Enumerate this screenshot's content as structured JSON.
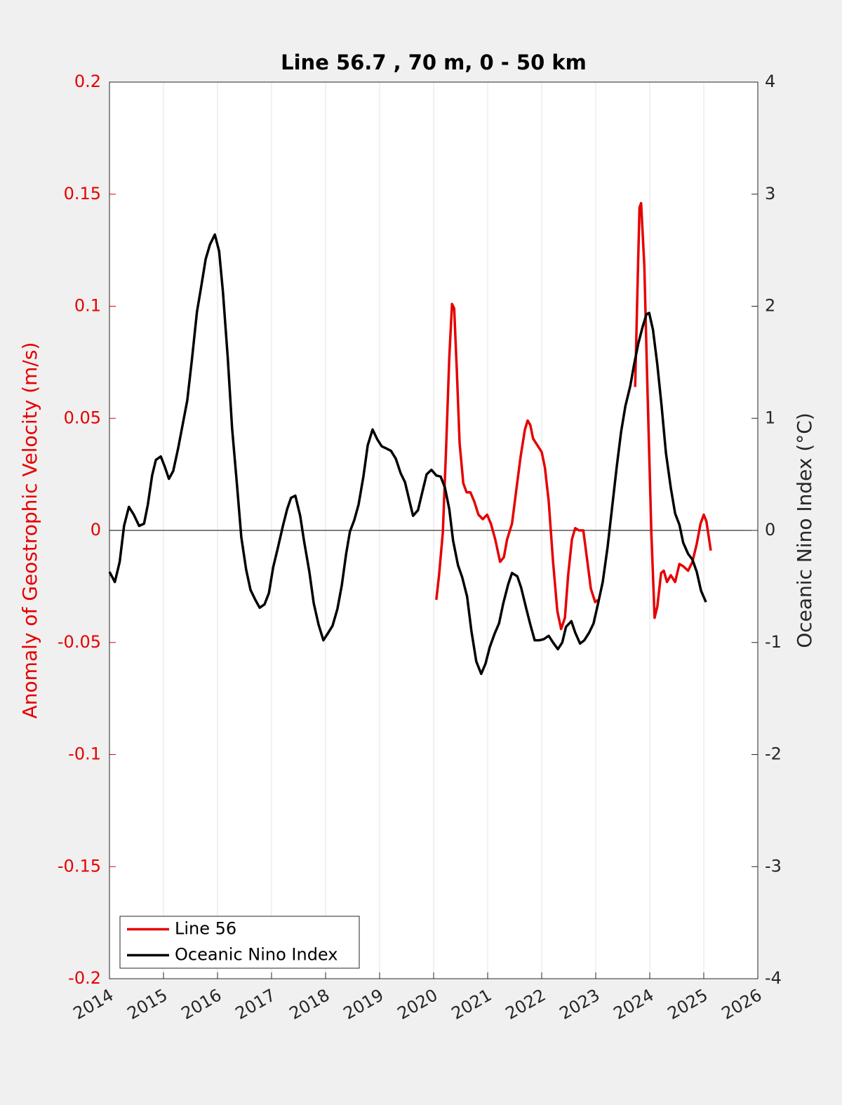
{
  "chart_data": {
    "type": "line",
    "title": "Line 56.7 , 70 m, 0 - 50 km",
    "ylabel": "Anomaly of Geostrophic Velocity (m/s)",
    "y2label": "Oceanic Nino Index (°C)",
    "xlim": [
      2014,
      2026
    ],
    "xticks": [
      2014,
      2015,
      2016,
      2017,
      2018,
      2019,
      2020,
      2021,
      2022,
      2023,
      2024,
      2025,
      2026
    ],
    "ylim": [
      -0.2,
      0.2
    ],
    "yticks": [
      0.2,
      0.15,
      0.1,
      0.05,
      0,
      -0.05,
      -0.1,
      -0.15,
      -0.2
    ],
    "y2lim": [
      -4,
      4
    ],
    "y2ticks": [
      4,
      3,
      2,
      1,
      0,
      -1,
      -2,
      -3,
      -4
    ],
    "xgrid": true,
    "legend": "lower left",
    "series": [
      {
        "name": "Line 56",
        "color": "#e60000",
        "x": [
          2020.05,
          2020.1,
          2020.17,
          2020.23,
          2020.29,
          2020.34,
          2020.38,
          2020.43,
          2020.48,
          2020.55,
          2020.61,
          2020.68,
          2020.75,
          2020.83,
          2020.91,
          2020.99,
          2021.06,
          2021.14,
          2021.23,
          2021.3,
          2021.36,
          2021.45,
          2021.53,
          2021.61,
          2021.69,
          2021.74,
          2021.79,
          2021.84,
          2021.92,
          2022.0,
          2022.06,
          2022.13,
          2022.21,
          2022.29,
          2022.36,
          2022.43,
          2022.49,
          2022.56,
          2022.62,
          2022.69,
          2022.77,
          2022.83,
          2022.91,
          2022.99,
          2023.04,
          2023.5,
          2023.73,
          2023.77,
          2023.81,
          2023.84,
          2023.9,
          2023.96,
          2024.03,
          2024.09,
          2024.14,
          2024.21,
          2024.26,
          2024.32,
          2024.39,
          2024.47,
          2024.55,
          2024.62,
          2024.71,
          2024.79,
          2024.87,
          2024.94,
          2025.0,
          2025.05,
          2025.13
        ],
        "values": [
          -0.031,
          -0.02,
          -0.001,
          0.036,
          0.077,
          0.101,
          0.099,
          0.071,
          0.039,
          0.021,
          0.017,
          0.017,
          0.013,
          0.007,
          0.005,
          0.007,
          0.003,
          -0.004,
          -0.014,
          -0.012,
          -0.004,
          0.003,
          0.018,
          0.033,
          0.045,
          0.049,
          0.047,
          0.041,
          0.038,
          0.035,
          0.028,
          0.013,
          -0.014,
          -0.036,
          -0.044,
          -0.039,
          -0.02,
          -0.004,
          0.001,
          0,
          0,
          -0.011,
          -0.026,
          -0.032,
          -0.031,
          null,
          0.064,
          0.105,
          0.144,
          0.146,
          0.118,
          0.061,
          -0.001,
          -0.039,
          -0.034,
          -0.019,
          -0.018,
          -0.023,
          -0.02,
          -0.023,
          -0.015,
          -0.016,
          -0.018,
          -0.014,
          -0.006,
          0.003,
          0.007,
          0.004,
          -0.009
        ]
      },
      {
        "name": "Oceanic Nino Index",
        "color": "#000000",
        "axis": "y2",
        "x": [
          2014.0,
          2014.1,
          2014.19,
          2014.27,
          2014.36,
          2014.45,
          2014.55,
          2014.64,
          2014.71,
          2014.79,
          2014.86,
          2014.95,
          2015.03,
          2015.1,
          2015.18,
          2015.27,
          2015.35,
          2015.44,
          2015.53,
          2015.62,
          2015.7,
          2015.78,
          2015.86,
          2015.95,
          2016.03,
          2016.1,
          2016.19,
          2016.27,
          2016.36,
          2016.44,
          2016.53,
          2016.61,
          2016.7,
          2016.78,
          2016.87,
          2016.95,
          2017.03,
          2017.12,
          2017.21,
          2017.29,
          2017.36,
          2017.44,
          2017.53,
          2017.6,
          2017.7,
          2017.78,
          2017.87,
          2017.96,
          2018.04,
          2018.13,
          2018.22,
          2018.3,
          2018.38,
          2018.45,
          2018.53,
          2018.61,
          2018.7,
          2018.78,
          2018.87,
          2018.96,
          2019.04,
          2019.13,
          2019.21,
          2019.3,
          2019.39,
          2019.47,
          2019.55,
          2019.62,
          2019.71,
          2019.79,
          2019.87,
          2019.96,
          2020.05,
          2020.13,
          2020.21,
          2020.29,
          2020.36,
          2020.45,
          2020.53,
          2020.62,
          2020.7,
          2020.79,
          2020.88,
          2020.96,
          2021.04,
          2021.13,
          2021.21,
          2021.29,
          2021.38,
          2021.45,
          2021.55,
          2021.62,
          2021.71,
          2021.79,
          2021.87,
          2021.96,
          2022.04,
          2022.13,
          2022.21,
          2022.3,
          2022.38,
          2022.45,
          2022.55,
          2022.62,
          2022.71,
          2022.79,
          2022.88,
          2022.96,
          2023.04,
          2023.13,
          2023.22,
          2023.3,
          2023.39,
          2023.47,
          2023.55,
          2023.64,
          2023.71,
          2023.79,
          2023.87,
          2023.94,
          2023.99,
          2024.06,
          2024.14,
          2024.22,
          2024.3,
          2024.39,
          2024.47,
          2024.55,
          2024.62,
          2024.71,
          2024.79,
          2024.87,
          2024.95,
          2025.04
        ],
        "values": [
          -0.37,
          -0.46,
          -0.28,
          0.04,
          0.21,
          0.14,
          0.04,
          0.06,
          0.23,
          0.49,
          0.63,
          0.66,
          0.56,
          0.46,
          0.53,
          0.73,
          0.93,
          1.16,
          1.54,
          1.95,
          2.18,
          2.42,
          2.55,
          2.64,
          2.49,
          2.13,
          1.54,
          0.91,
          0.41,
          -0.06,
          -0.35,
          -0.53,
          -0.62,
          -0.69,
          -0.66,
          -0.56,
          -0.33,
          -0.15,
          0.04,
          0.19,
          0.29,
          0.31,
          0.13,
          -0.09,
          -0.37,
          -0.65,
          -0.84,
          -0.98,
          -0.92,
          -0.85,
          -0.7,
          -0.49,
          -0.21,
          -0.01,
          0.09,
          0.23,
          0.48,
          0.76,
          0.9,
          0.81,
          0.75,
          0.73,
          0.71,
          0.64,
          0.51,
          0.43,
          0.27,
          0.13,
          0.18,
          0.34,
          0.5,
          0.54,
          0.49,
          0.48,
          0.38,
          0.19,
          -0.09,
          -0.31,
          -0.42,
          -0.59,
          -0.9,
          -1.17,
          -1.28,
          -1.19,
          -1.04,
          -0.92,
          -0.83,
          -0.65,
          -0.48,
          -0.38,
          -0.41,
          -0.51,
          -0.69,
          -0.84,
          -0.98,
          -0.98,
          -0.97,
          -0.94,
          -1.0,
          -1.06,
          -1.0,
          -0.86,
          -0.81,
          -0.91,
          -1.01,
          -0.98,
          -0.91,
          -0.83,
          -0.66,
          -0.46,
          -0.15,
          0.19,
          0.57,
          0.88,
          1.11,
          1.29,
          1.48,
          1.67,
          1.82,
          1.93,
          1.94,
          1.79,
          1.48,
          1.11,
          0.69,
          0.38,
          0.15,
          0.05,
          -0.11,
          -0.21,
          -0.26,
          -0.37,
          -0.54,
          -0.64
        ]
      }
    ]
  }
}
